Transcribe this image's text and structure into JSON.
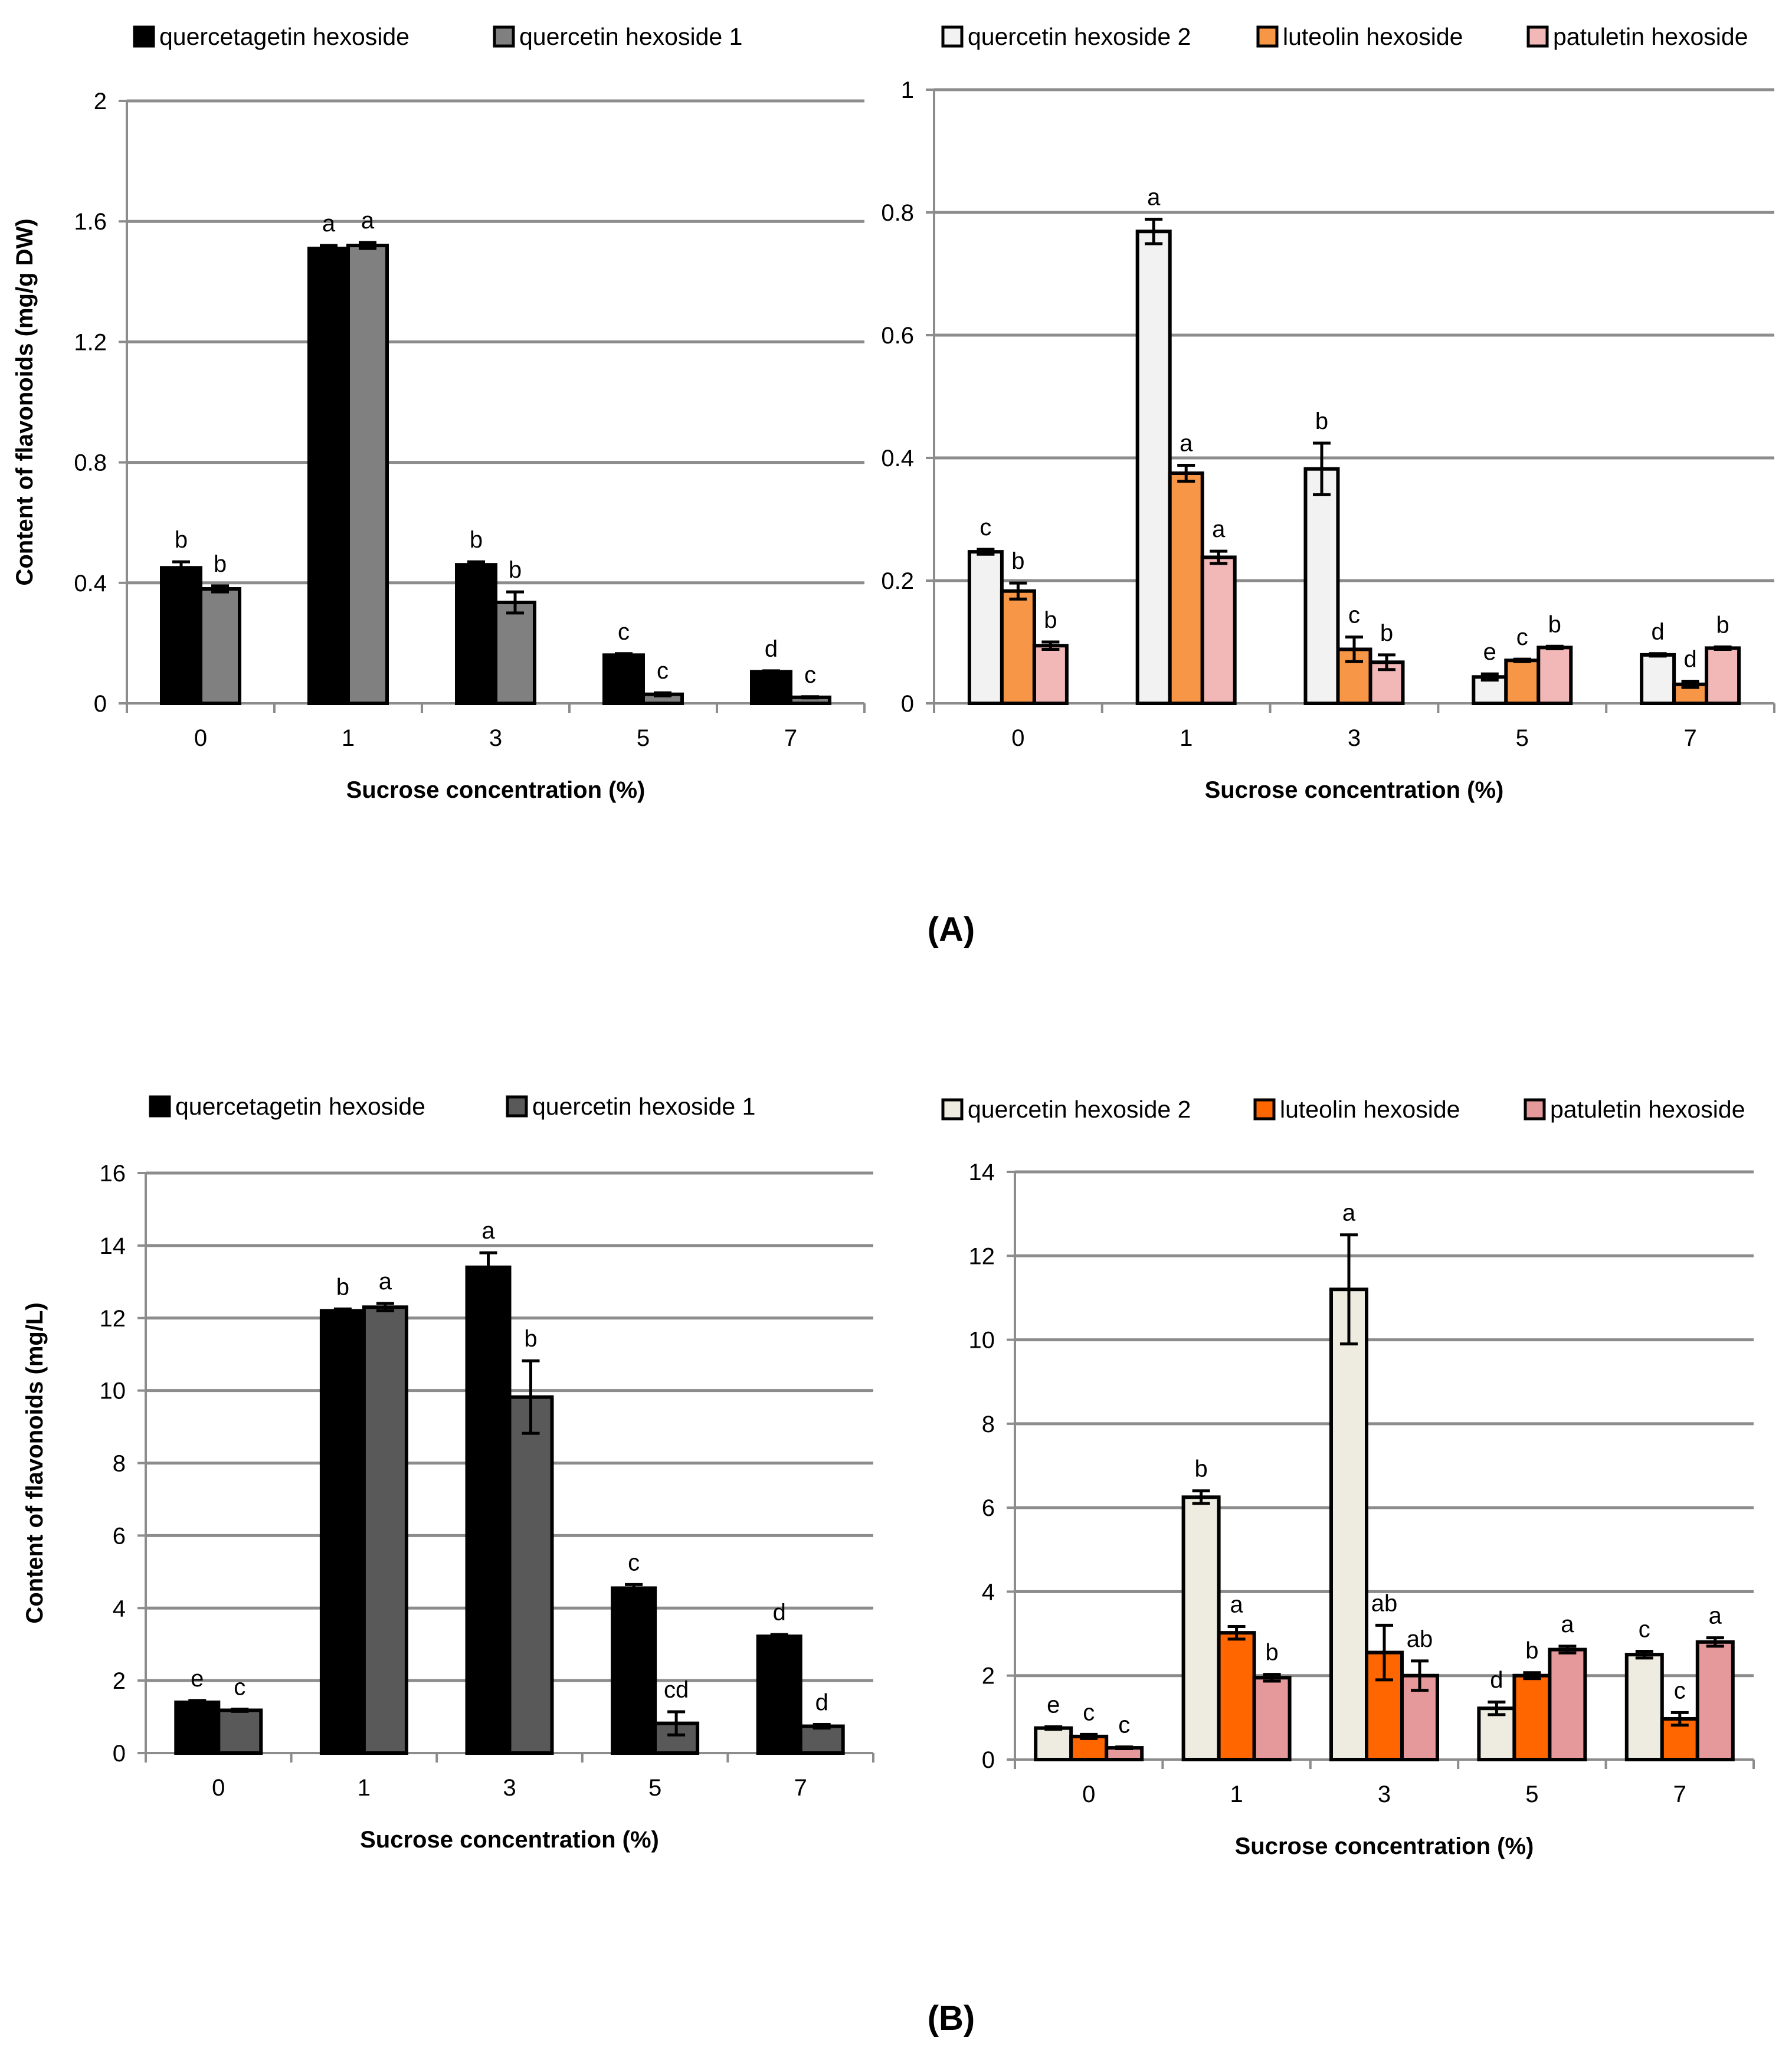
{
  "figure": {
    "panel_labels": [
      "(A)",
      "(B)"
    ]
  },
  "colors": {
    "quercetagetin_hexoside": "#000000",
    "quercetin_hexoside_1_A": "#808080",
    "quercetin_hexoside_1_B": "#595959",
    "quercetin_hexoside_2_A": "#f2f2f2",
    "quercetin_hexoside_2_B": "#eeece1",
    "luteolin_hexoside_A": "#f79646",
    "luteolin_hexoside_B": "#ff6600",
    "patuletin_hexoside_A": "#f2b8b8",
    "patuletin_hexoside_B": "#e6999b",
    "gridline": "#8c8c8c",
    "axis": "#8c8c8c"
  },
  "chart_data": [
    {
      "panel": "A",
      "type": "bar",
      "title": "",
      "xlabel": "Sucrose concentration (%)",
      "ylabel": "Content of flavonoids (mg/g DW)",
      "categories": [
        "0",
        "1",
        "3",
        "5",
        "7"
      ],
      "ylim": [
        0,
        2
      ],
      "yticks": [
        "0",
        "0.4",
        "0.8",
        "1.2",
        "1.6",
        "2"
      ],
      "grid": true,
      "legend_position": "top",
      "series": [
        {
          "name": "quercetagetin hexoside",
          "color_key": "quercetagetin_hexoside",
          "values": [
            0.45,
            1.51,
            0.46,
            0.16,
            0.105
          ],
          "errors": [
            0.02,
            0.01,
            0.01,
            0.005,
            0.003
          ],
          "letters": [
            "b",
            "a",
            "b",
            "c",
            "d"
          ]
        },
        {
          "name": "quercetin hexoside 1",
          "color_key": "quercetin_hexoside_1_A",
          "values": [
            0.38,
            1.52,
            0.335,
            0.03,
            0.02
          ],
          "errors": [
            0.01,
            0.01,
            0.035,
            0.005,
            0.002
          ],
          "letters": [
            "b",
            "a",
            "b",
            "c",
            "c"
          ]
        }
      ]
    },
    {
      "panel": "A",
      "type": "bar",
      "title": "",
      "xlabel": "Sucrose concentration (%)",
      "ylabel": "",
      "categories": [
        "0",
        "1",
        "3",
        "5",
        "7"
      ],
      "ylim": [
        0,
        1
      ],
      "yticks": [
        "0",
        "0.2",
        "0.4",
        "0.6",
        "0.8",
        "1"
      ],
      "grid": true,
      "legend_position": "top",
      "series": [
        {
          "name": "quercetin hexoside 2",
          "color_key": "quercetin_hexoside_2_A",
          "values": [
            0.247,
            0.769,
            0.382,
            0.043,
            0.079
          ],
          "errors": [
            0.004,
            0.02,
            0.042,
            0.005,
            0.002
          ],
          "letters": [
            "c",
            "a",
            "b",
            "e",
            "d"
          ]
        },
        {
          "name": "luteolin hexoside",
          "color_key": "luteolin_hexoside_A",
          "values": [
            0.183,
            0.375,
            0.088,
            0.07,
            0.031
          ],
          "errors": [
            0.013,
            0.013,
            0.02,
            0.002,
            0.005
          ],
          "letters": [
            "b",
            "a",
            "c",
            "c",
            "d"
          ]
        },
        {
          "name": "patuletin hexoside",
          "color_key": "patuletin_hexoside_A",
          "values": [
            0.094,
            0.238,
            0.067,
            0.091,
            0.09
          ],
          "errors": [
            0.006,
            0.01,
            0.012,
            0.002,
            0.002
          ],
          "letters": [
            "b",
            "a",
            "b",
            "b",
            "b"
          ]
        }
      ]
    },
    {
      "panel": "B",
      "type": "bar",
      "title": "",
      "xlabel": "Sucrose concentration (%)",
      "ylabel": "Content of flavonoids (mg/L)",
      "categories": [
        "0",
        "1",
        "3",
        "5",
        "7"
      ],
      "ylim": [
        0,
        16
      ],
      "yticks": [
        "0",
        "2",
        "4",
        "6",
        "8",
        "10",
        "12",
        "14",
        "16"
      ],
      "grid": true,
      "legend_position": "top",
      "series": [
        {
          "name": "quercetagetin hexoside",
          "color_key": "quercetagetin_hexoside",
          "values": [
            1.4,
            12.2,
            13.4,
            4.55,
            3.22
          ],
          "errors": [
            0.05,
            0.05,
            0.4,
            0.1,
            0.05
          ],
          "letters": [
            "e",
            "b",
            "a",
            "c",
            "d"
          ]
        },
        {
          "name": "quercetin hexoside 1",
          "color_key": "quercetin_hexoside_1_B",
          "values": [
            1.18,
            12.3,
            9.82,
            0.82,
            0.74
          ],
          "errors": [
            0.03,
            0.1,
            1.0,
            0.32,
            0.05
          ],
          "letters": [
            "c",
            "a",
            "b",
            "cd",
            "d"
          ]
        }
      ]
    },
    {
      "panel": "B",
      "type": "bar",
      "title": "",
      "xlabel": "Sucrose concentration (%)",
      "ylabel": "",
      "categories": [
        "0",
        "1",
        "3",
        "5",
        "7"
      ],
      "ylim": [
        0,
        14
      ],
      "yticks": [
        "0",
        "2",
        "4",
        "6",
        "8",
        "10",
        "12",
        "14"
      ],
      "grid": true,
      "legend_position": "top",
      "series": [
        {
          "name": "quercetin hexoside 2",
          "color_key": "quercetin_hexoside_2_B",
          "values": [
            0.75,
            6.25,
            11.2,
            1.22,
            2.5
          ],
          "errors": [
            0.03,
            0.15,
            1.3,
            0.15,
            0.08
          ],
          "letters": [
            "e",
            "b",
            "a",
            "d",
            "c"
          ]
        },
        {
          "name": "luteolin hexoside",
          "color_key": "luteolin_hexoside_B",
          "values": [
            0.55,
            3.02,
            2.55,
            2.0,
            0.97
          ],
          "errors": [
            0.05,
            0.15,
            0.65,
            0.07,
            0.15
          ],
          "letters": [
            "c",
            "a",
            "ab",
            "b",
            "c"
          ]
        },
        {
          "name": "patuletin hexoside",
          "color_key": "patuletin_hexoside_B",
          "values": [
            0.28,
            1.95,
            2.0,
            2.62,
            2.8
          ],
          "errors": [
            0.02,
            0.08,
            0.35,
            0.08,
            0.1
          ],
          "letters": [
            "c",
            "b",
            "ab",
            "a",
            "a"
          ]
        }
      ]
    }
  ]
}
